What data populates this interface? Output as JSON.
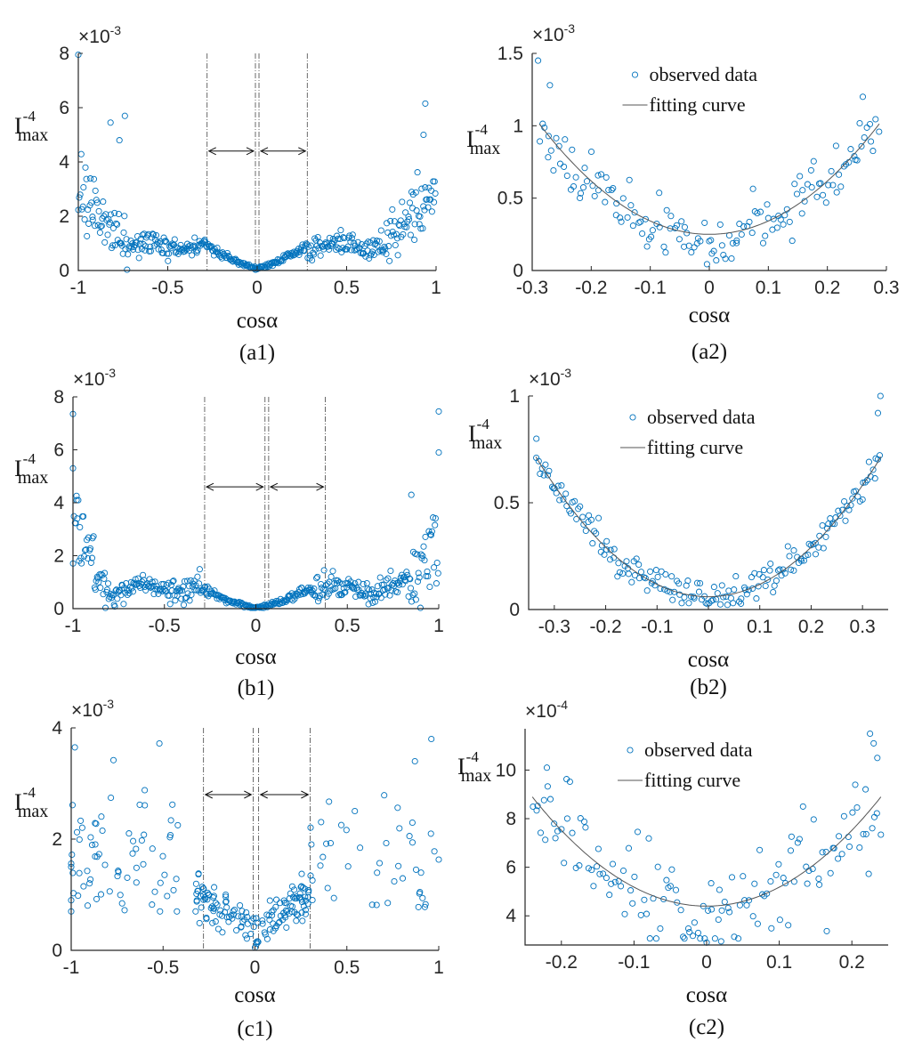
{
  "colors": {
    "marker": "#0072BD",
    "curve": "#555555",
    "axis": "#262626"
  },
  "chart_data": [
    {
      "id": "a1",
      "panel_label": "(a1)",
      "type": "scatter",
      "xlabel": "cosα",
      "ylabel_base": "I",
      "ylabel_sup": "-4",
      "ylabel_sub": "max",
      "multiplier_base": "×10",
      "multiplier_exp": "-3",
      "xlim": [
        -1,
        1
      ],
      "ylim": [
        0,
        8
      ],
      "xticks": [
        -1,
        -0.5,
        0,
        0.5,
        1
      ],
      "xtick_labels": [
        "-1",
        "-0.5",
        "0",
        "0.5",
        "1"
      ],
      "yticks": [
        0,
        2,
        4,
        6,
        8
      ],
      "ytick_labels": [
        "0",
        "2",
        "4",
        "6",
        "8"
      ],
      "vlines": [
        -0.28,
        -0.01,
        0.01,
        0.28
      ],
      "arrow_y": 4.4,
      "arrows": [
        [
          -0.27,
          -0.02
        ],
        [
          0.02,
          0.27
        ]
      ],
      "scatter": {
        "seed": 11,
        "n": 420,
        "shape": "wide",
        "base": 0.9,
        "noise": 0.35,
        "edge": 0.72,
        "edge_scale": 2.6,
        "center_w": 0.28,
        "min_center": 0.08,
        "outliers": [
          [
            -1.0,
            7.95
          ],
          [
            0.94,
            6.15
          ],
          [
            -0.82,
            5.45
          ],
          [
            -0.74,
            5.7
          ],
          [
            0.93,
            5.0
          ],
          [
            -0.77,
            4.8
          ]
        ]
      },
      "curve": null,
      "legend": null
    },
    {
      "id": "a2",
      "panel_label": "(a2)",
      "type": "scatter",
      "xlabel": "cosα",
      "ylabel_base": "I",
      "ylabel_sup": "-4",
      "ylabel_sub": "max",
      "multiplier_base": "×10",
      "multiplier_exp": "-3",
      "xlim": [
        -0.3,
        0.3
      ],
      "ylim": [
        0,
        1.5
      ],
      "xticks": [
        -0.3,
        -0.2,
        -0.1,
        0,
        0.1,
        0.2,
        0.3
      ],
      "xtick_labels": [
        "-0.3",
        "-0.2",
        "-0.1",
        "0",
        "0.1",
        "0.2",
        "0.3"
      ],
      "yticks": [
        0,
        0.5,
        1,
        1.5
      ],
      "ytick_labels": [
        "0",
        "0.5",
        "1",
        "1.5"
      ],
      "vlines": [],
      "arrow_y": null,
      "arrows": [],
      "scatter": {
        "seed": 23,
        "n": 150,
        "shape": "parab",
        "a": 9.2,
        "c": 0.25,
        "noise": 0.09,
        "dip": 0.1,
        "outliers": [
          [
            -0.29,
            1.45
          ],
          [
            -0.27,
            1.28
          ],
          [
            0.26,
            1.2
          ]
        ]
      },
      "curve": {
        "a": 9.2,
        "c": 0.25
      },
      "legend": {
        "marker_label": "observed data",
        "line_label": "fitting curve"
      }
    },
    {
      "id": "b1",
      "panel_label": "(b1)",
      "type": "scatter",
      "xlabel": "cosα",
      "ylabel_base": "I",
      "ylabel_sup": "-4",
      "ylabel_sub": "max",
      "multiplier_base": "×10",
      "multiplier_exp": "-3",
      "xlim": [
        -1,
        1
      ],
      "ylim": [
        0,
        8
      ],
      "xticks": [
        -1,
        -0.5,
        0,
        0.5,
        1
      ],
      "xtick_labels": [
        "-1",
        "-0.5",
        "0",
        "0.5",
        "1"
      ],
      "yticks": [
        0,
        2,
        4,
        6,
        8
      ],
      "ytick_labels": [
        "0",
        "2",
        "4",
        "6",
        "8"
      ],
      "vlines": [
        -0.28,
        0.05,
        0.07,
        0.38
      ],
      "arrow_y": 4.6,
      "arrows": [
        [
          -0.27,
          0.04
        ],
        [
          0.08,
          0.37
        ]
      ],
      "scatter": {
        "seed": 37,
        "n": 430,
        "shape": "wide",
        "base": 0.75,
        "noise": 0.35,
        "edge": 0.82,
        "edge_scale": 2.2,
        "center_w": 0.3,
        "min_center": 0.02,
        "outliers": [
          [
            -1.0,
            7.35
          ],
          [
            1.0,
            7.45
          ],
          [
            1.0,
            5.9
          ],
          [
            -1.0,
            5.3
          ],
          [
            0.85,
            4.3
          ],
          [
            -0.98,
            4.1
          ]
        ]
      },
      "curve": null,
      "legend": null
    },
    {
      "id": "b2",
      "panel_label": "(b2)",
      "type": "scatter",
      "xlabel": "cosα",
      "ylabel_base": "I",
      "ylabel_sup": "-4",
      "ylabel_sub": "max",
      "multiplier_base": "×10",
      "multiplier_exp": "-3",
      "xlim": [
        -0.35,
        0.35
      ],
      "ylim": [
        0,
        1
      ],
      "xticks": [
        -0.3,
        -0.2,
        -0.1,
        0,
        0.1,
        0.2,
        0.3
      ],
      "xtick_labels": [
        "-0.3",
        "-0.2",
        "-0.1",
        "0",
        "0.1",
        "0.2",
        "0.3"
      ],
      "yticks": [
        0,
        0.5,
        1
      ],
      "ytick_labels": [
        "0",
        "0.5",
        "1"
      ],
      "vlines": [],
      "arrow_y": null,
      "arrows": [],
      "scatter": {
        "seed": 51,
        "n": 190,
        "shape": "parab",
        "a": 5.8,
        "c": 0.06,
        "noise": 0.035,
        "dip": 0,
        "outliers": [
          [
            0.335,
            1.0
          ],
          [
            0.33,
            0.92
          ],
          [
            -0.335,
            0.8
          ]
        ]
      },
      "curve": {
        "a": 5.8,
        "c": 0.06
      },
      "legend": {
        "marker_label": "observed data",
        "line_label": "fitting curve"
      }
    },
    {
      "id": "c1",
      "panel_label": "(c1)",
      "type": "scatter",
      "xlabel": "cosα",
      "ylabel_base": "I",
      "ylabel_sup": "-4",
      "ylabel_sub": "max",
      "multiplier_base": "×10",
      "multiplier_exp": "-3",
      "xlim": [
        -1,
        1
      ],
      "ylim": [
        0,
        4
      ],
      "xticks": [
        -1,
        -0.5,
        0,
        0.5,
        1
      ],
      "xtick_labels": [
        "-1",
        "-0.5",
        "0",
        "0.5",
        "1"
      ],
      "yticks": [
        0,
        2,
        4
      ],
      "ytick_labels": [
        "0",
        "2",
        "4"
      ],
      "vlines": [
        -0.28,
        -0.01,
        0.02,
        0.3
      ],
      "arrow_y": 2.8,
      "arrows": [
        [
          -0.27,
          -0.02
        ],
        [
          0.03,
          0.29
        ]
      ],
      "scatter": {
        "seed": 67,
        "n": 260,
        "shape": "sparse",
        "outliers": [
          [
            -0.52,
            3.72
          ],
          [
            -0.98,
            3.65
          ],
          [
            0.96,
            3.8
          ],
          [
            -0.77,
            3.42
          ],
          [
            0.87,
            3.4
          ],
          [
            -0.6,
            2.88
          ],
          [
            -0.42,
            2.25
          ],
          [
            0.0,
            0.05
          ],
          [
            0.01,
            0.12
          ]
        ]
      },
      "curve": null,
      "legend": null
    },
    {
      "id": "c2",
      "panel_label": "(c2)",
      "type": "scatter",
      "xlabel": "cosα",
      "ylabel_base": "I",
      "ylabel_sup": "-4",
      "ylabel_sub": "max",
      "multiplier_base": "×10",
      "multiplier_exp": "-4",
      "xlim": [
        -0.25,
        0.25
      ],
      "ylim": [
        2.8,
        11.7
      ],
      "xticks": [
        -0.2,
        -0.1,
        0,
        0.1,
        0.2
      ],
      "xtick_labels": [
        "-0.2",
        "-0.1",
        "0",
        "0.1",
        "0.2"
      ],
      "yticks": [
        4,
        6,
        8,
        10
      ],
      "ytick_labels": [
        "4",
        "6",
        "8",
        "10"
      ],
      "vlines": [],
      "arrow_y": null,
      "arrows": [],
      "scatter": {
        "seed": 83,
        "n": 140,
        "shape": "parab",
        "a": 78,
        "c": 4.4,
        "noise": 0.95,
        "dip": 0,
        "outliers": [
          [
            0.225,
            11.5
          ],
          [
            0.23,
            11.1
          ],
          [
            -0.22,
            10.1
          ],
          [
            0.235,
            10.5
          ],
          [
            0.0,
            2.9
          ],
          [
            0.02,
            2.95
          ]
        ]
      },
      "curve": {
        "a": 78,
        "c": 4.4
      },
      "legend": {
        "marker_label": "observed data",
        "line_label": "fitting curve"
      }
    }
  ]
}
